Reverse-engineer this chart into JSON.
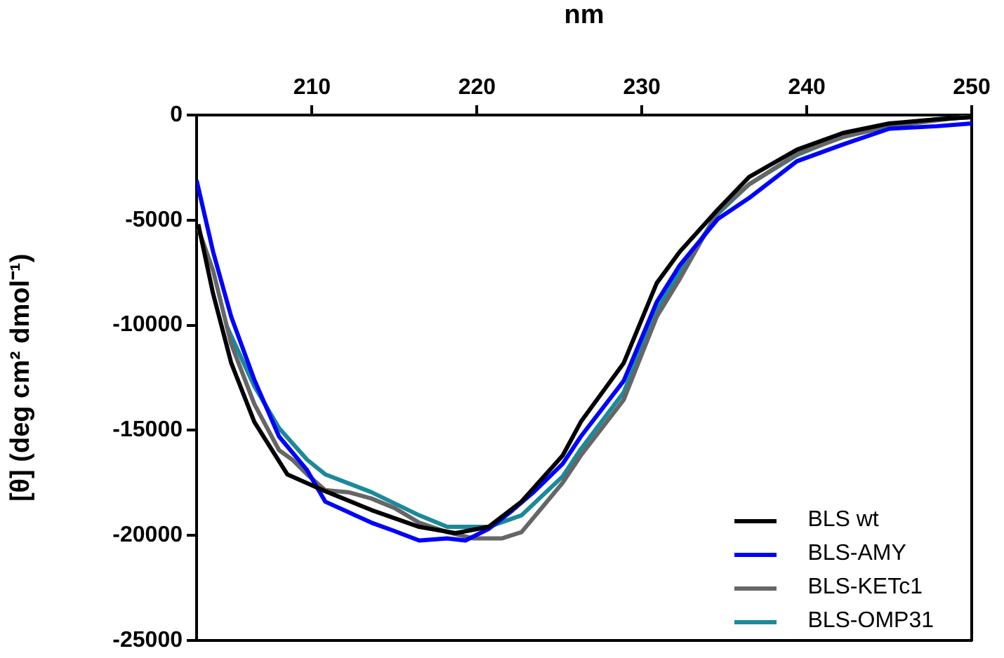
{
  "chart_data": {
    "type": "line",
    "xlabel": "nm",
    "ylabel": "[θ] (deg cm² dmol⁻¹)",
    "xlim": [
      203,
      250
    ],
    "xticks": [
      210,
      220,
      230,
      240,
      250
    ],
    "ylim": [
      -25000,
      0
    ],
    "yticks": [
      0,
      -5000,
      -10000,
      -15000,
      -20000,
      -25000
    ],
    "legend": "bottom right",
    "marker": "none",
    "line_style": "solid",
    "series": [
      {
        "name": "BLS wt",
        "color": "#000000",
        "x": [
          203.1,
          204.0,
          205.1,
          206.5,
          208.5,
          210.8,
          213.6,
          216.5,
          218.7,
          220.7,
          222.7,
          225.2,
          226.3,
          228.9,
          230.9,
          232.3,
          234.6,
          236.5,
          239.4,
          242.2,
          245.0,
          247.9,
          250.0
        ],
        "values": [
          -5200,
          -8500,
          -11800,
          -14600,
          -17100,
          -17900,
          -18800,
          -19600,
          -19900,
          -19600,
          -18400,
          -16200,
          -14600,
          -11800,
          -8000,
          -6500,
          -4500,
          -2950,
          -1650,
          -850,
          -400,
          -200,
          -100
        ]
      },
      {
        "name": "BLS-AMY",
        "color": "#0000ff",
        "x": [
          203.0,
          204.0,
          205.1,
          206.5,
          208.0,
          209.7,
          210.8,
          212.2,
          213.6,
          215.0,
          216.5,
          218.2,
          219.3,
          220.7,
          222.1,
          223.5,
          225.2,
          226.3,
          228.9,
          230.9,
          232.3,
          234.6,
          236.5,
          239.4,
          242.2,
          245.0,
          247.9,
          250.0
        ],
        "values": [
          -3100,
          -6500,
          -9600,
          -12600,
          -15300,
          -16900,
          -18400,
          -18900,
          -19400,
          -19800,
          -20250,
          -20150,
          -20250,
          -19700,
          -18850,
          -17900,
          -16600,
          -15300,
          -12650,
          -8900,
          -7150,
          -4950,
          -3950,
          -2200,
          -1400,
          -650,
          -530,
          -400
        ]
      },
      {
        "name": "BLS-KETc1",
        "color": "#666666",
        "x": [
          203.1,
          204.0,
          205.1,
          206.5,
          208.0,
          208.8,
          209.7,
          210.8,
          212.2,
          213.6,
          215.0,
          216.5,
          218.2,
          219.8,
          221.5,
          222.7,
          225.2,
          226.3,
          228.9,
          230.9,
          232.3,
          234.6,
          236.5,
          239.4,
          242.2,
          245.0,
          247.9,
          250.0
        ],
        "values": [
          -5400,
          -7400,
          -10900,
          -13750,
          -15950,
          -16400,
          -17100,
          -17850,
          -17950,
          -18250,
          -18700,
          -19400,
          -19850,
          -20150,
          -20150,
          -19850,
          -17500,
          -16200,
          -13550,
          -9600,
          -7800,
          -4600,
          -3300,
          -1850,
          -1050,
          -530,
          -250,
          -50
        ]
      },
      {
        "name": "BLS-OMP31",
        "color": "#1a8a9a",
        "x": [
          204.8,
          206.5,
          208.0,
          209.7,
          210.8,
          213.6,
          216.5,
          218.2,
          220.7,
          222.7,
          225.2,
          226.3,
          228.9,
          230.9,
          232.3,
          234.6,
          236.5,
          239.4,
          242.2,
          245.0,
          247.9,
          250.0
        ],
        "values": [
          -10000,
          -12900,
          -14900,
          -16400,
          -17100,
          -17950,
          -19050,
          -19600,
          -19600,
          -19050,
          -17200,
          -15900,
          -13200,
          -9300,
          -7500,
          -4700,
          -3300,
          -1900,
          -1000,
          -500,
          -200,
          -100
        ]
      }
    ]
  }
}
